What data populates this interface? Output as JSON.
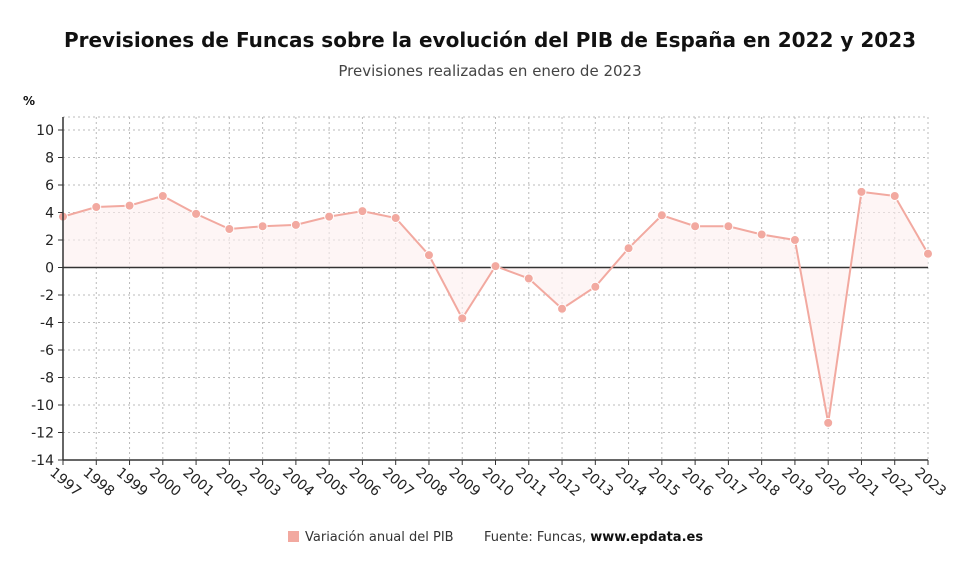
{
  "chart_data": {
    "type": "line",
    "title": "Previsiones de Funcas sobre la evolución del PIB de España en 2022 y 2023",
    "subtitle": "Previsiones realizadas en enero de 2023",
    "ylabel": "%",
    "xlabel": "",
    "ylim": [
      -14,
      10
    ],
    "yticks": [
      10,
      8,
      6,
      4,
      2,
      0,
      -2,
      -4,
      -6,
      -8,
      -10,
      -12,
      -14
    ],
    "grid": true,
    "legend_position": "bottom",
    "x": [
      "1997",
      "1998",
      "1999",
      "2000",
      "2001",
      "2002",
      "2003",
      "2004",
      "2005",
      "2006",
      "2007",
      "2008",
      "2009",
      "2010",
      "2011",
      "2012",
      "2013",
      "2014",
      "2015",
      "2016",
      "2017",
      "2018",
      "2019",
      "2020",
      "2021",
      "2022",
      "2023"
    ],
    "series": [
      {
        "name": "Variación anual del PIB",
        "color": "#f2a9a0",
        "values": [
          3.7,
          4.4,
          4.5,
          5.2,
          3.9,
          2.8,
          3.0,
          3.1,
          3.7,
          4.1,
          3.6,
          0.9,
          -3.7,
          0.1,
          -0.8,
          -3.0,
          -1.4,
          1.4,
          3.8,
          3.0,
          3.0,
          2.4,
          2.0,
          -11.3,
          5.5,
          5.2,
          1.0
        ]
      }
    ]
  },
  "source": {
    "prefix": "Fuente: Funcas, ",
    "site": "www.epdata.es"
  },
  "colors": {
    "line": "#f2a9a0",
    "point": "#f2a9a0",
    "fill": "#fdeeee",
    "zero_line": "#333333",
    "grid": "#bbbbbb"
  }
}
